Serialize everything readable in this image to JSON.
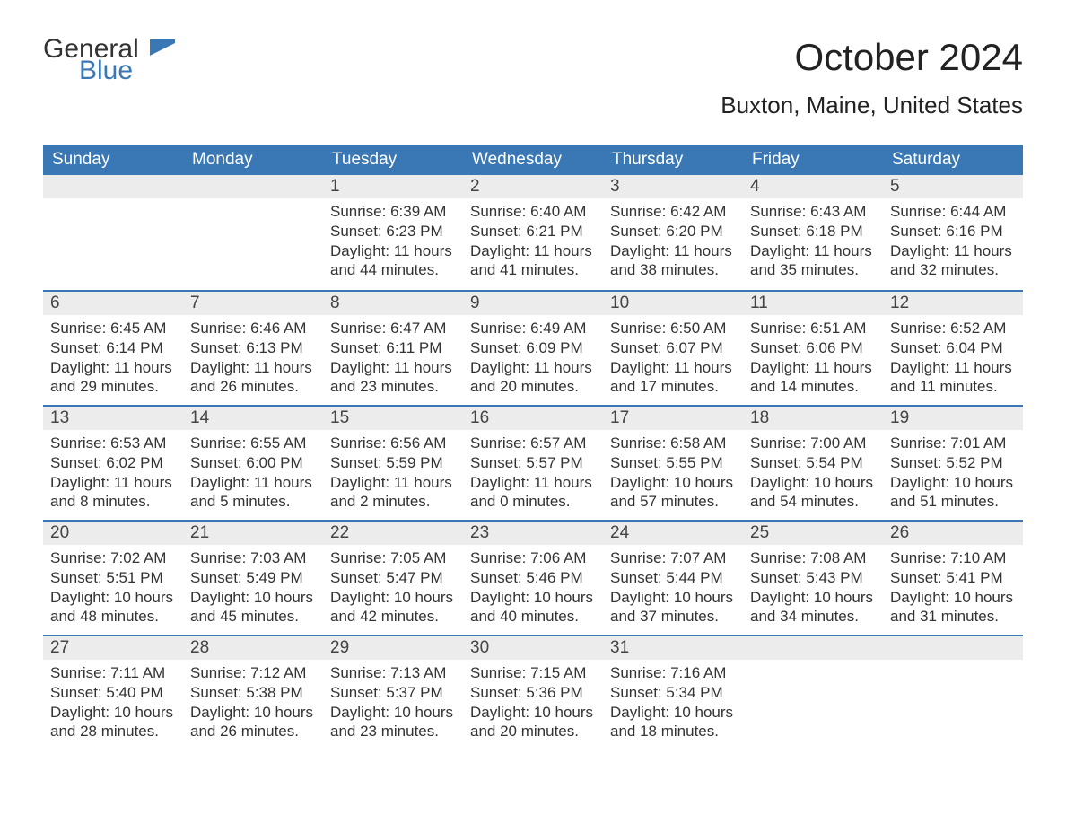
{
  "logo": {
    "text1": "General",
    "text2": "Blue"
  },
  "title": "October 2024",
  "location": "Buxton, Maine, United States",
  "colors": {
    "header_bg": "#3a78b5",
    "header_fg": "#ffffff",
    "daynum_bg": "#ececec",
    "row_border": "#3a78b5",
    "text": "#333333",
    "background": "#ffffff"
  },
  "fonts": {
    "title_size_pt": 32,
    "location_size_pt": 20,
    "header_size_pt": 14,
    "body_size_pt": 13
  },
  "calendar": {
    "type": "table",
    "columns": [
      "Sunday",
      "Monday",
      "Tuesday",
      "Wednesday",
      "Thursday",
      "Friday",
      "Saturday"
    ],
    "weeks": [
      [
        null,
        null,
        {
          "n": "1",
          "sr": "6:39 AM",
          "ss": "6:23 PM",
          "dl": "11 hours and 44 minutes."
        },
        {
          "n": "2",
          "sr": "6:40 AM",
          "ss": "6:21 PM",
          "dl": "11 hours and 41 minutes."
        },
        {
          "n": "3",
          "sr": "6:42 AM",
          "ss": "6:20 PM",
          "dl": "11 hours and 38 minutes."
        },
        {
          "n": "4",
          "sr": "6:43 AM",
          "ss": "6:18 PM",
          "dl": "11 hours and 35 minutes."
        },
        {
          "n": "5",
          "sr": "6:44 AM",
          "ss": "6:16 PM",
          "dl": "11 hours and 32 minutes."
        }
      ],
      [
        {
          "n": "6",
          "sr": "6:45 AM",
          "ss": "6:14 PM",
          "dl": "11 hours and 29 minutes."
        },
        {
          "n": "7",
          "sr": "6:46 AM",
          "ss": "6:13 PM",
          "dl": "11 hours and 26 minutes."
        },
        {
          "n": "8",
          "sr": "6:47 AM",
          "ss": "6:11 PM",
          "dl": "11 hours and 23 minutes."
        },
        {
          "n": "9",
          "sr": "6:49 AM",
          "ss": "6:09 PM",
          "dl": "11 hours and 20 minutes."
        },
        {
          "n": "10",
          "sr": "6:50 AM",
          "ss": "6:07 PM",
          "dl": "11 hours and 17 minutes."
        },
        {
          "n": "11",
          "sr": "6:51 AM",
          "ss": "6:06 PM",
          "dl": "11 hours and 14 minutes."
        },
        {
          "n": "12",
          "sr": "6:52 AM",
          "ss": "6:04 PM",
          "dl": "11 hours and 11 minutes."
        }
      ],
      [
        {
          "n": "13",
          "sr": "6:53 AM",
          "ss": "6:02 PM",
          "dl": "11 hours and 8 minutes."
        },
        {
          "n": "14",
          "sr": "6:55 AM",
          "ss": "6:00 PM",
          "dl": "11 hours and 5 minutes."
        },
        {
          "n": "15",
          "sr": "6:56 AM",
          "ss": "5:59 PM",
          "dl": "11 hours and 2 minutes."
        },
        {
          "n": "16",
          "sr": "6:57 AM",
          "ss": "5:57 PM",
          "dl": "11 hours and 0 minutes."
        },
        {
          "n": "17",
          "sr": "6:58 AM",
          "ss": "5:55 PM",
          "dl": "10 hours and 57 minutes."
        },
        {
          "n": "18",
          "sr": "7:00 AM",
          "ss": "5:54 PM",
          "dl": "10 hours and 54 minutes."
        },
        {
          "n": "19",
          "sr": "7:01 AM",
          "ss": "5:52 PM",
          "dl": "10 hours and 51 minutes."
        }
      ],
      [
        {
          "n": "20",
          "sr": "7:02 AM",
          "ss": "5:51 PM",
          "dl": "10 hours and 48 minutes."
        },
        {
          "n": "21",
          "sr": "7:03 AM",
          "ss": "5:49 PM",
          "dl": "10 hours and 45 minutes."
        },
        {
          "n": "22",
          "sr": "7:05 AM",
          "ss": "5:47 PM",
          "dl": "10 hours and 42 minutes."
        },
        {
          "n": "23",
          "sr": "7:06 AM",
          "ss": "5:46 PM",
          "dl": "10 hours and 40 minutes."
        },
        {
          "n": "24",
          "sr": "7:07 AM",
          "ss": "5:44 PM",
          "dl": "10 hours and 37 minutes."
        },
        {
          "n": "25",
          "sr": "7:08 AM",
          "ss": "5:43 PM",
          "dl": "10 hours and 34 minutes."
        },
        {
          "n": "26",
          "sr": "7:10 AM",
          "ss": "5:41 PM",
          "dl": "10 hours and 31 minutes."
        }
      ],
      [
        {
          "n": "27",
          "sr": "7:11 AM",
          "ss": "5:40 PM",
          "dl": "10 hours and 28 minutes."
        },
        {
          "n": "28",
          "sr": "7:12 AM",
          "ss": "5:38 PM",
          "dl": "10 hours and 26 minutes."
        },
        {
          "n": "29",
          "sr": "7:13 AM",
          "ss": "5:37 PM",
          "dl": "10 hours and 23 minutes."
        },
        {
          "n": "30",
          "sr": "7:15 AM",
          "ss": "5:36 PM",
          "dl": "10 hours and 20 minutes."
        },
        {
          "n": "31",
          "sr": "7:16 AM",
          "ss": "5:34 PM",
          "dl": "10 hours and 18 minutes."
        },
        null,
        null
      ]
    ],
    "labels": {
      "sunrise": "Sunrise: ",
      "sunset": "Sunset: ",
      "daylight": "Daylight: "
    }
  }
}
